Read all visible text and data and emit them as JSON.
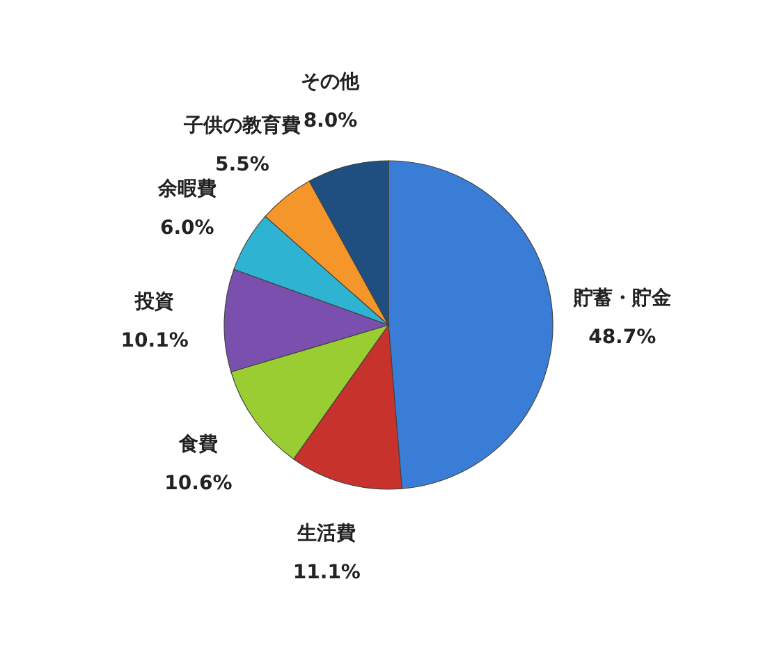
{
  "chart_data": {
    "type": "pie",
    "categories": [
      "貯蓄・貯金",
      "生活費",
      "食費",
      "投資",
      "余暇費",
      "子供の教育費",
      "その他"
    ],
    "values": [
      48.7,
      11.1,
      10.6,
      10.1,
      6.0,
      5.5,
      8.0
    ],
    "colors": [
      "#3a7dd6",
      "#c8322c",
      "#9acd32",
      "#7a4fae",
      "#2fb3d3",
      "#f5962a",
      "#1f4e80"
    ],
    "value_labels": [
      "48.7%",
      "11.1%",
      "10.6%",
      "10.1%",
      "6.0%",
      "5.5%",
      "8.0%"
    ]
  }
}
